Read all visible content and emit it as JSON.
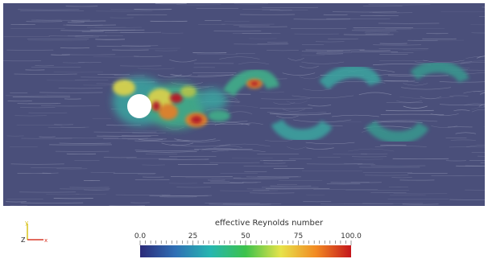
{
  "visualization": {
    "cylinder": "solid obstacle",
    "wake": "vortex street"
  },
  "orientation_axes": {
    "y_label": "y",
    "z_label": "Z",
    "x_label": "x",
    "y_color": "#d8c21a",
    "z_color": "#222222",
    "x_color": "#d83a2a"
  },
  "legend": {
    "title": "effective Reynolds number",
    "min": 0.0,
    "max": 100.0,
    "tick_labels": [
      "0.0",
      "25",
      "50",
      "75",
      "100.0"
    ],
    "tick_values": [
      0,
      25,
      50,
      75,
      100
    ],
    "colormap": [
      "#2b2a78",
      "#2f6fb5",
      "#26b6b0",
      "#3cc24b",
      "#e7e34a",
      "#f28a22",
      "#c4161c"
    ]
  },
  "colors": {
    "background_flow": "#4a4f7a",
    "streaks": "#c9cde0",
    "cylinder": "#ffffff"
  }
}
